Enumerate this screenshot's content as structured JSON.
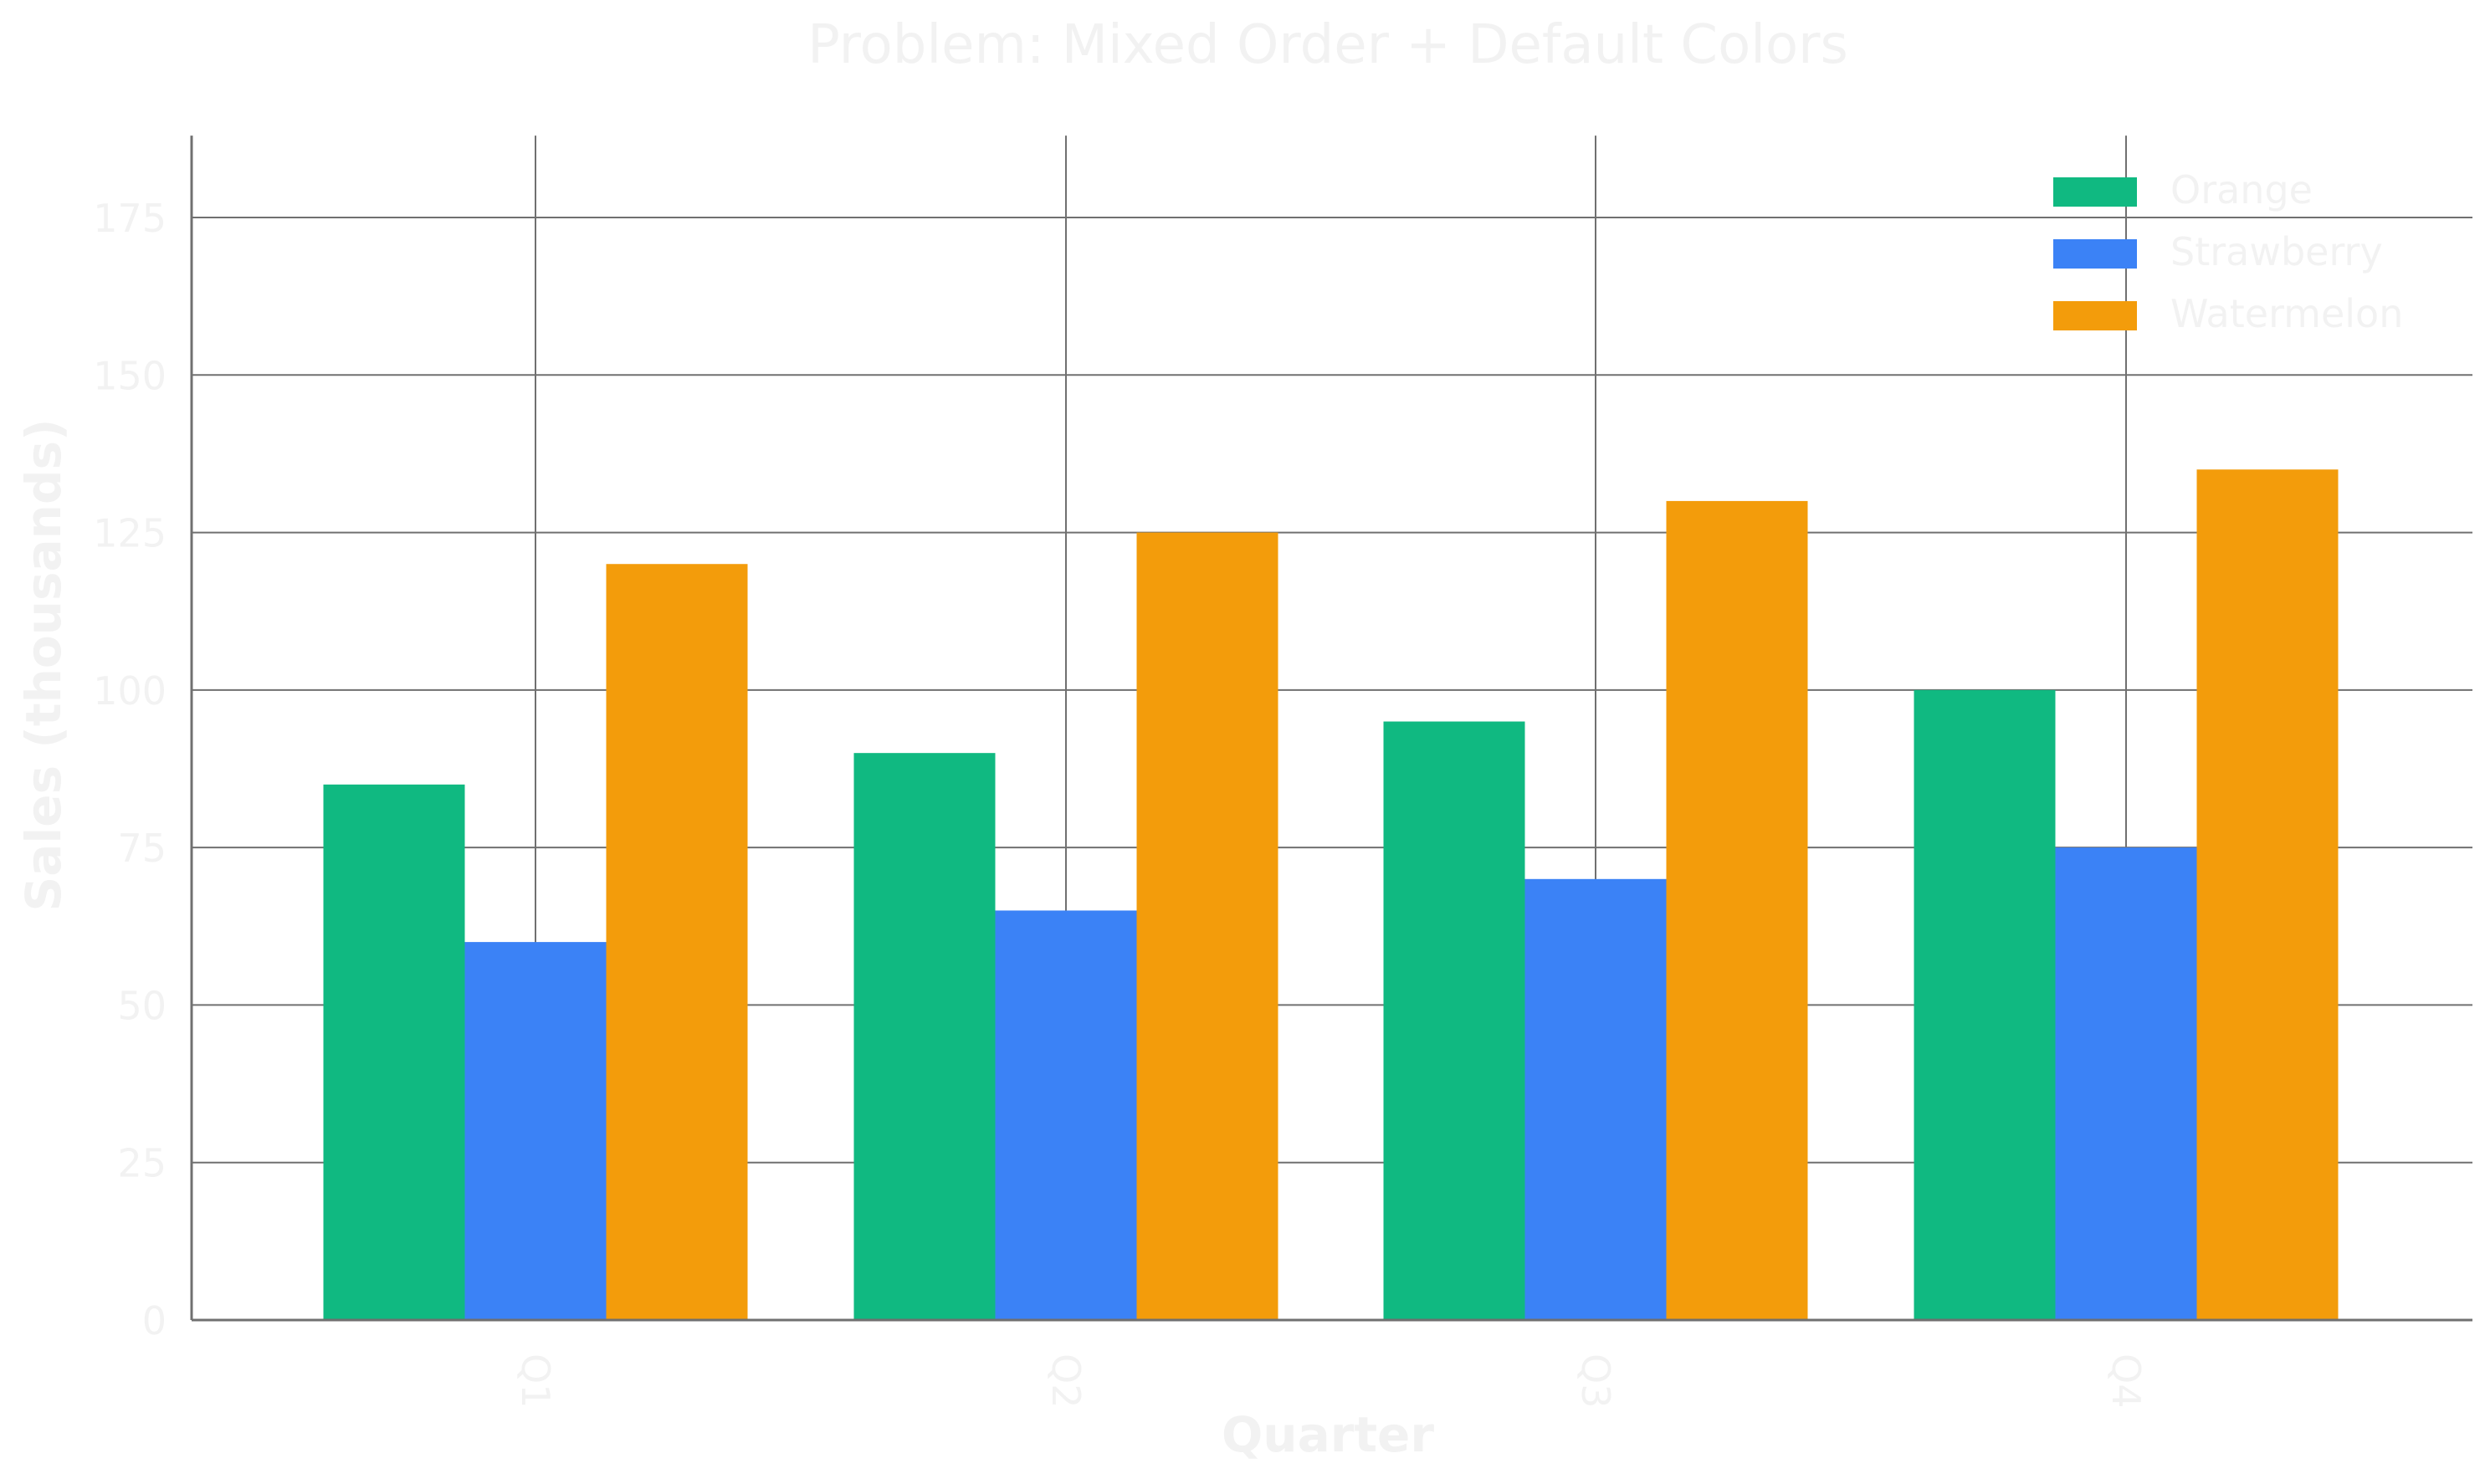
{
  "chart_data": {
    "type": "bar",
    "title": "Problem: Mixed Order + Default Colors",
    "xlabel": "Quarter",
    "ylabel": "Sales (thousands)",
    "categories": [
      "Q1",
      "Q2",
      "Q3",
      "Q4"
    ],
    "series": [
      {
        "name": "Orange",
        "color": "#10b981",
        "values": [
          85,
          90,
          95,
          100
        ]
      },
      {
        "name": "Strawberry",
        "color": "#3b82f6",
        "values": [
          60,
          65,
          70,
          75
        ]
      },
      {
        "name": "Watermelon",
        "color": "#f39c0b",
        "values": [
          120,
          125,
          130,
          135
        ]
      }
    ],
    "ylim": [
      0,
      188
    ],
    "yticks": [
      0,
      25,
      50,
      75,
      100,
      125,
      150,
      175
    ],
    "grid": true,
    "legend_position": "top-right"
  }
}
